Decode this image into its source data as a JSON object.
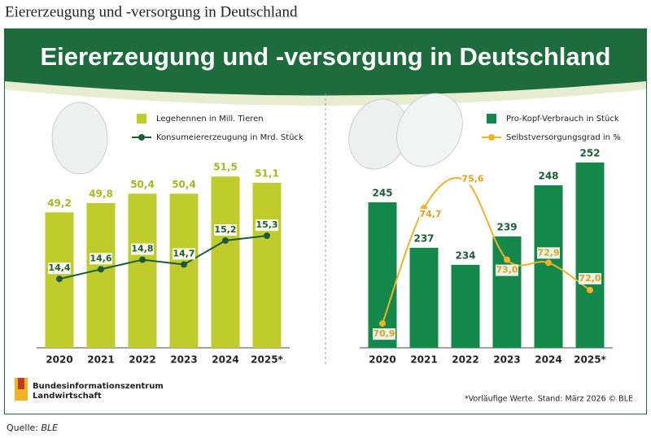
{
  "page_title": "Eiererzeugung und -versorgung in Deutschland",
  "header_title": "Eiererzeugung und -versorgung in Deutschland",
  "chart_data": [
    {
      "type": "bar-line",
      "categories": [
        "2020",
        "2021",
        "2022",
        "2023",
        "2024",
        "2025*"
      ],
      "ylim": [
        40.5,
        52.4
      ],
      "y2lim": [
        12.96,
        16.83
      ],
      "series": [
        {
          "name": "Legehennen in Mill. Tieren",
          "color": "#bfcc2b",
          "type": "bar",
          "values": [
            49.2,
            49.8,
            50.4,
            50.4,
            51.5,
            51.1
          ],
          "value_labels": [
            "49,2",
            "49,8",
            "50,4",
            "50,4",
            "51,5",
            "51,1"
          ]
        },
        {
          "name": "Konsumeiererzeugung in Mrd. Stück",
          "color": "#1e5b3a",
          "type": "line",
          "axis": "y2",
          "values": [
            14.4,
            14.6,
            14.8,
            14.7,
            15.2,
            15.3
          ],
          "value_labels": [
            "14,4",
            "14,6",
            "14,8",
            "14,7",
            "15,2",
            "15,3"
          ]
        }
      ]
    },
    {
      "type": "bar-line",
      "categories": [
        "2020",
        "2021",
        "2022",
        "2023",
        "2024",
        "2025*"
      ],
      "ylim": [
        219.4,
        252
      ],
      "y2lim": [
        70.1,
        76.2
      ],
      "series": [
        {
          "name": "Pro-Kopf-Verbrauch in Stück",
          "color": "#14874a",
          "type": "bar",
          "values": [
            245,
            237,
            234,
            239,
            248,
            252
          ]
        },
        {
          "name": "Selbstversorgungsgrad in %",
          "color": "#f0b323",
          "type": "line",
          "axis": "y2",
          "smooth": true,
          "values": [
            70.9,
            74.7,
            75.6,
            73.0,
            72.9,
            72.0
          ],
          "value_labels": [
            "70,9",
            "74,7",
            "75,6",
            "73,0",
            "72,9",
            "72,0"
          ]
        }
      ]
    }
  ],
  "logo": {
    "line1": "Bundesinformationszentrum",
    "line2": "Landwirtschaft"
  },
  "footnote": "*Vorläufige Werte. Stand: März 2026 © BLE",
  "source": {
    "label": "Quelle:",
    "name": "BLE"
  }
}
